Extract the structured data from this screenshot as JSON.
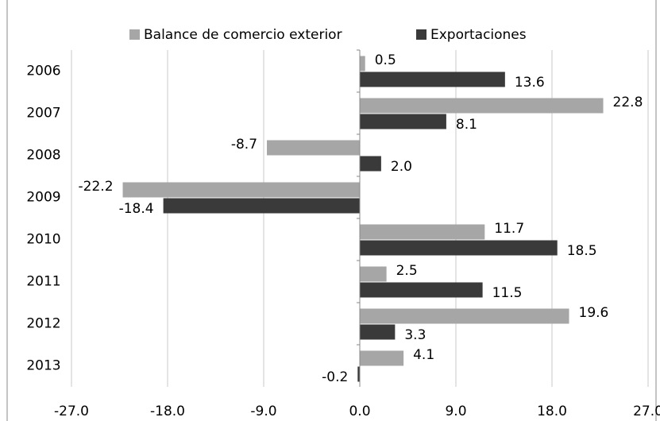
{
  "chart_data": {
    "type": "hbar",
    "categories": [
      "2006",
      "2007",
      "2008",
      "2009",
      "2010",
      "2011",
      "2012",
      "2013"
    ],
    "series": [
      {
        "name": "Balance de comercio exterior",
        "color": "#a6a6a6",
        "values": [
          0.5,
          22.8,
          -8.7,
          -22.2,
          11.7,
          2.5,
          19.6,
          4.1
        ],
        "value_labels": [
          "0.5",
          "22.8",
          "-8.7",
          "-22.2",
          "11.7",
          "2.5",
          "19.6",
          "4.1"
        ]
      },
      {
        "name": "Exportaciones",
        "color": "#3a3a3a",
        "values": [
          13.6,
          8.1,
          2.0,
          -18.4,
          18.5,
          11.5,
          3.3,
          -0.2
        ],
        "value_labels": [
          "13.6",
          "8.1",
          "2.0",
          "-18.4",
          "18.5",
          "11.5",
          "3.3",
          "-0.2"
        ]
      }
    ],
    "xlim": [
      -27,
      27
    ],
    "xticks": [
      {
        "value": -27,
        "label": "-27.0"
      },
      {
        "value": -18,
        "label": "-18.0"
      },
      {
        "value": -9,
        "label": "-9.0"
      },
      {
        "value": 0,
        "label": "0.0"
      },
      {
        "value": 9,
        "label": "9.0"
      },
      {
        "value": 18,
        "label": "18.0"
      },
      {
        "value": 27,
        "label": "27.0"
      }
    ],
    "grid": true,
    "legend": "top"
  }
}
